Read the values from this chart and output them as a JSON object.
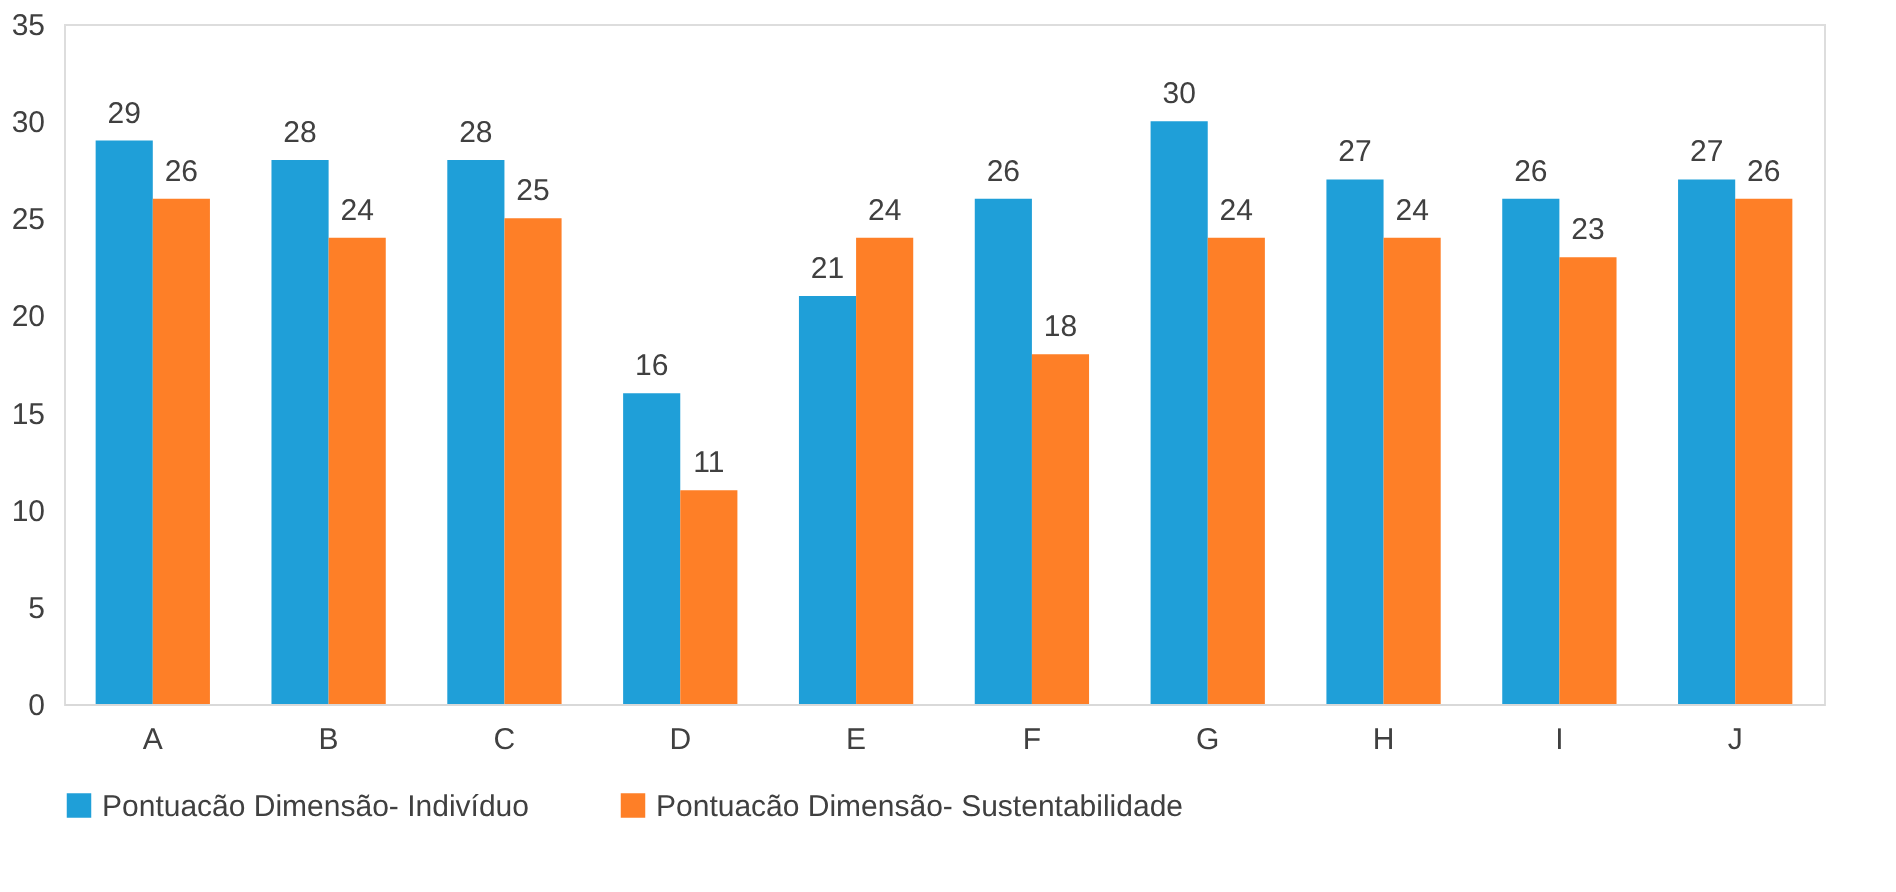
{
  "chart_data": {
    "type": "bar",
    "categories": [
      "A",
      "B",
      "C",
      "D",
      "E",
      "F",
      "G",
      "H",
      "I",
      "J"
    ],
    "series": [
      {
        "name": "Pontuacão  Dimensão- Indivíduo",
        "color": "#1f9fd8",
        "values": [
          29,
          28,
          28,
          16,
          21,
          26,
          30,
          27,
          26,
          27
        ]
      },
      {
        "name": "Pontuacão Dimensão- Sustentabilidade",
        "color": "#fe7f27",
        "values": [
          26,
          24,
          25,
          11,
          24,
          18,
          24,
          24,
          23,
          26
        ]
      }
    ],
    "ylim": [
      0,
      35
    ],
    "yticks": [
      0,
      5,
      10,
      15,
      20,
      25,
      30,
      35
    ],
    "grid": false,
    "legend": "bottom",
    "data_labels": true
  }
}
